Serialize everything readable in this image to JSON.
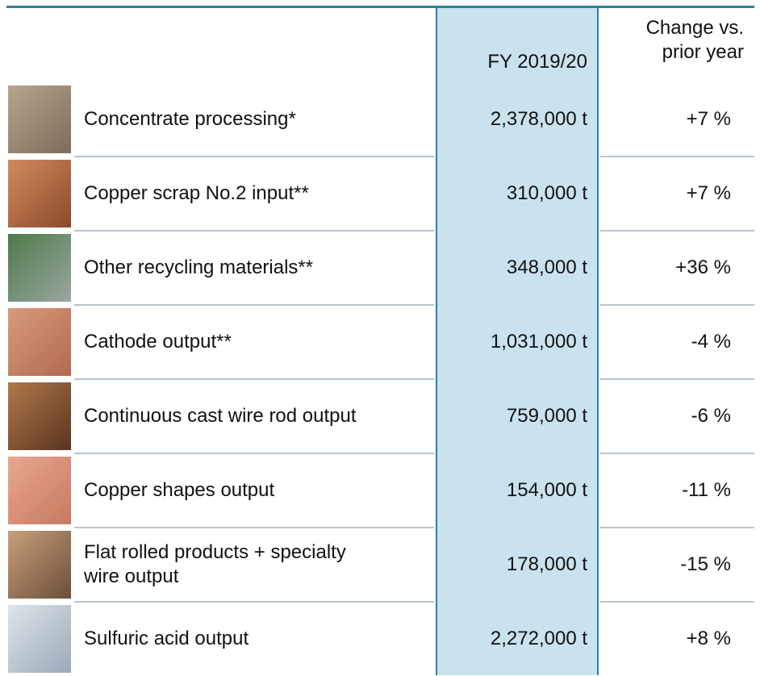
{
  "header": {
    "columns": [
      "FY 2019/20",
      "Change vs. prior year"
    ]
  },
  "table": {
    "rows": [
      [
        "Concentrate processing*",
        "2,378,000 t",
        "+7 %"
      ],
      [
        "Copper scrap No.2 input**",
        "310,000 t",
        "+7 %"
      ],
      [
        "Other recycling materials**",
        "348,000 t",
        "+36 %"
      ],
      [
        "Cathode output**",
        "1,031,000 t",
        "-4 %"
      ],
      [
        "Continuous cast wire rod output",
        "759,000 t",
        "-6 %"
      ],
      [
        "Copper shapes output",
        "154,000 t",
        "-11 %"
      ],
      [
        "Flat rolled products + specialty wire output",
        "178,000 t",
        "-15 %"
      ],
      [
        "Sulfuric acid output",
        "2,272,000 t",
        "+8 %"
      ]
    ]
  }
}
